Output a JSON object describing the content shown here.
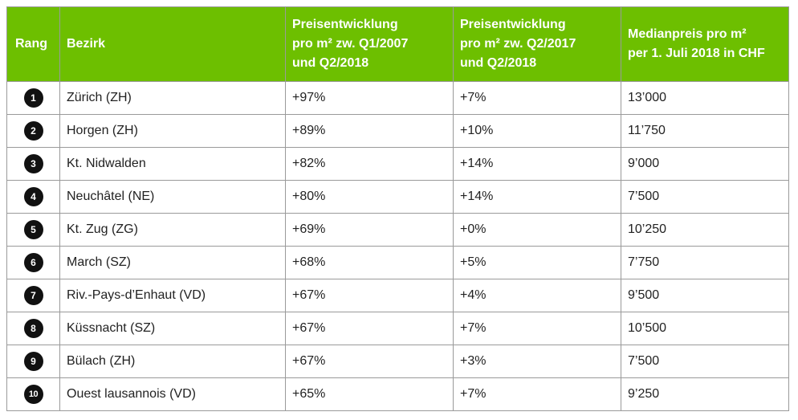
{
  "table": {
    "headers": {
      "rang": "Rang",
      "bezirk": "Bezirk",
      "preis_2007": [
        "Preisentwicklung",
        "pro m² zw. Q1/2007",
        "und Q2/2018"
      ],
      "preis_2017": [
        "Preisentwicklung",
        "pro m² zw. Q2/2017",
        "und Q2/2018"
      ],
      "median": [
        "Medianpreis pro m²",
        "per 1. Juli 2018 in CHF"
      ]
    },
    "rows": [
      {
        "rang": "1",
        "bezirk": "Zürich (ZH)",
        "preis_2007": "+97%",
        "preis_2017": "+7%",
        "median": "13’000"
      },
      {
        "rang": "2",
        "bezirk": "Horgen (ZH)",
        "preis_2007": "+89%",
        "preis_2017": "+10%",
        "median": "11’750"
      },
      {
        "rang": "3",
        "bezirk": "Kt. Nidwalden",
        "preis_2007": "+82%",
        "preis_2017": "+14%",
        "median": "9’000"
      },
      {
        "rang": "4",
        "bezirk": "Neuchâtel (NE)",
        "preis_2007": "+80%",
        "preis_2017": "+14%",
        "median": "7’500"
      },
      {
        "rang": "5",
        "bezirk": "Kt. Zug (ZG)",
        "preis_2007": "+69%",
        "preis_2017": "+0%",
        "median": "10’250"
      },
      {
        "rang": "6",
        "bezirk": "March (SZ)",
        "preis_2007": "+68%",
        "preis_2017": "+5%",
        "median": "7’750"
      },
      {
        "rang": "7",
        "bezirk": "Riv.-Pays-d’Enhaut (VD)",
        "preis_2007": "+67%",
        "preis_2017": "+4%",
        "median": "9’500"
      },
      {
        "rang": "8",
        "bezirk": "Küssnacht (SZ)",
        "preis_2007": "+67%",
        "preis_2017": "+7%",
        "median": "10’500"
      },
      {
        "rang": "9",
        "bezirk": "Bülach (ZH)",
        "preis_2007": "+67%",
        "preis_2017": "+3%",
        "median": "7’500"
      },
      {
        "rang": "10",
        "bezirk": "Ouest lausannois (VD)",
        "preis_2007": "+65%",
        "preis_2017": "+7%",
        "median": "9’250"
      }
    ]
  },
  "colors": {
    "header_bg": "#6dbf00",
    "header_text": "#ffffff",
    "badge_bg": "#111111",
    "border": "#9a9a9a"
  }
}
